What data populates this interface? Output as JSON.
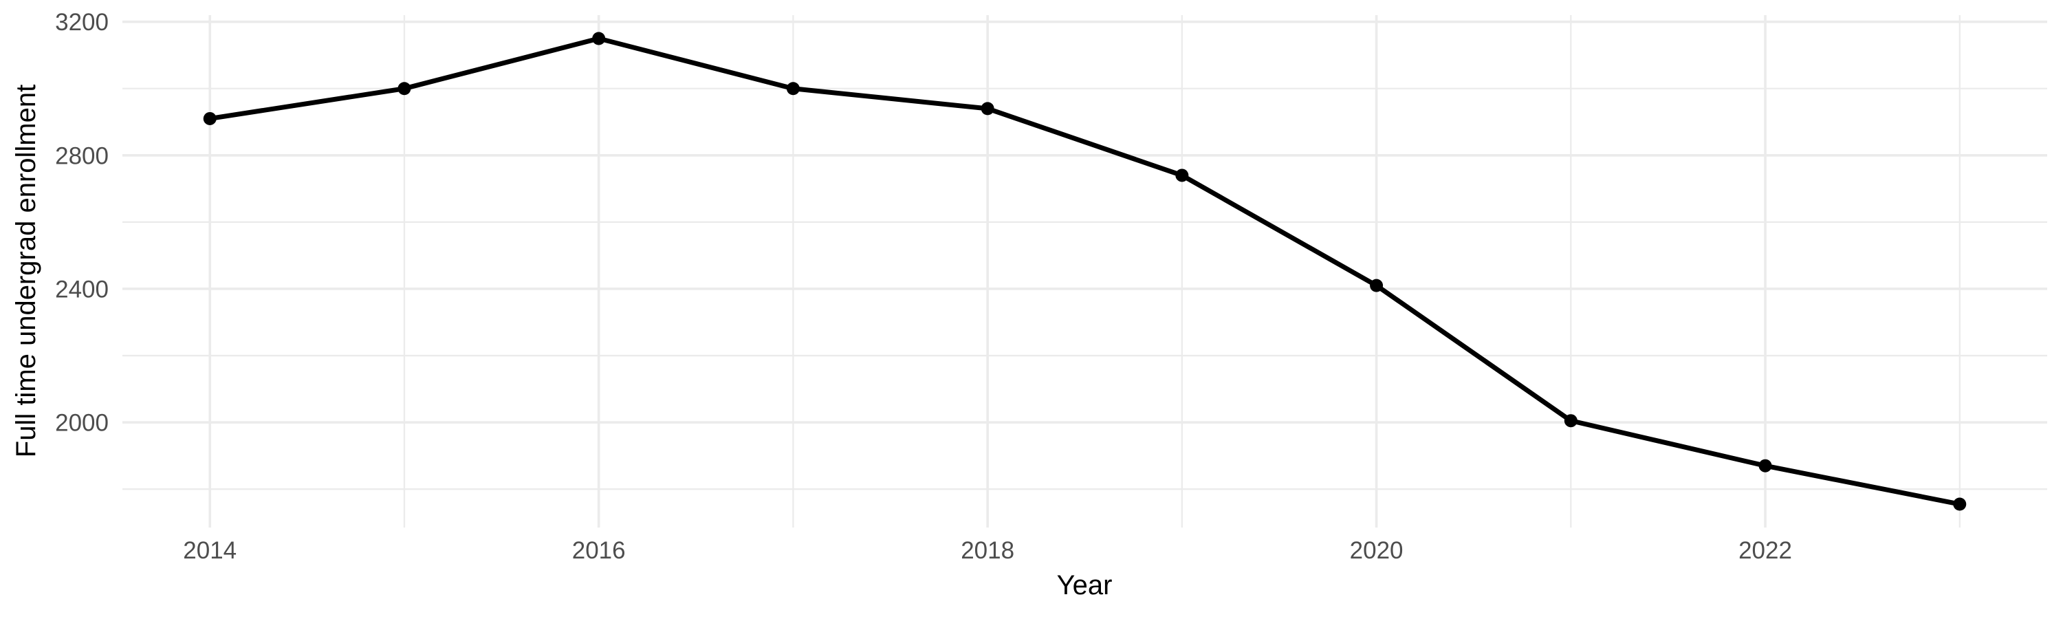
{
  "chart_data": {
    "type": "line",
    "title": "",
    "xlabel": "Year",
    "ylabel": "Full time undergrad enrollment",
    "series": [
      {
        "name": "Full time undergrad enrollment",
        "x": [
          2014,
          2015,
          2016,
          2017,
          2018,
          2019,
          2020,
          2021,
          2022,
          2023
        ],
        "values": [
          2910,
          3000,
          3150,
          3000,
          2940,
          2740,
          2410,
          2005,
          1870,
          1755
        ]
      }
    ],
    "x_major_ticks": [
      2014,
      2016,
      2018,
      2020,
      2022
    ],
    "x_minor_gridlines": [
      2015,
      2017,
      2019,
      2021,
      2023
    ],
    "y_major_ticks": [
      2000,
      2400,
      2800,
      3200
    ],
    "y_minor_gridlines": [
      1800,
      2200,
      2600,
      3000
    ],
    "xlim": [
      2013.55,
      2023.45
    ],
    "ylim": [
      1685,
      3220
    ],
    "grid": "major-and-minor, no axis lines, white background",
    "legend": "none",
    "marker": "filled-circle",
    "colors": {
      "line": "#000000",
      "point": "#000000",
      "gridline": "#EBEBEB",
      "tick_label": "#4D4D4D",
      "axis_title": "#000000",
      "background": "#FFFFFF"
    }
  }
}
